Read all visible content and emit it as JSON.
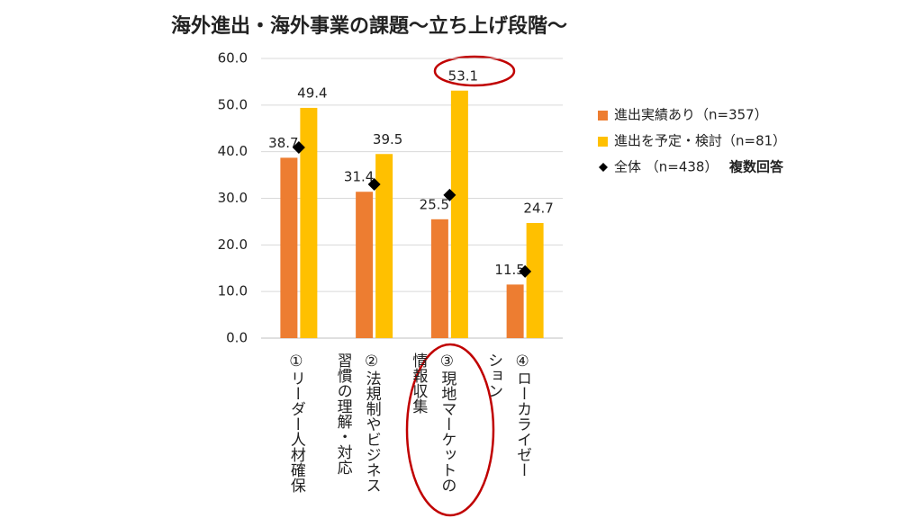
{
  "chart_data": {
    "type": "bar",
    "title": "海外進出・海外事業の課題～立ち上げ段階～",
    "categories": [
      [
        "①リーダー人材確保"
      ],
      [
        "②法規制やビジネス",
        "習慣の理解・対応"
      ],
      [
        "③現地マーケットの",
        "情報収集"
      ],
      [
        "④ローカライゼー",
        "ション"
      ]
    ],
    "series": [
      {
        "name": "進出実績あり（n=357）",
        "color": "#ED7D31",
        "values": [
          38.7,
          31.4,
          25.5,
          11.5
        ]
      },
      {
        "name": "進出を予定・検討（n=81）",
        "color": "#FFC000",
        "values": [
          49.4,
          39.5,
          53.1,
          24.7
        ]
      },
      {
        "name": "全体 （n=438）",
        "color": "#000000",
        "marker": "diamond",
        "values": [
          40.9,
          33.0,
          30.7,
          14.3
        ]
      }
    ],
    "note": "複数回答",
    "ylim": [
      0,
      60
    ],
    "yticks": [
      {
        "value": 0,
        "label": "0.0"
      },
      {
        "value": 10,
        "label": "10.0"
      },
      {
        "value": 20,
        "label": "20.0"
      },
      {
        "value": 30,
        "label": "30.0"
      },
      {
        "value": 40,
        "label": "40.0"
      },
      {
        "value": 50,
        "label": "50.0"
      },
      {
        "value": 60,
        "label": "60.0"
      }
    ],
    "grid": true,
    "legend": "right"
  }
}
